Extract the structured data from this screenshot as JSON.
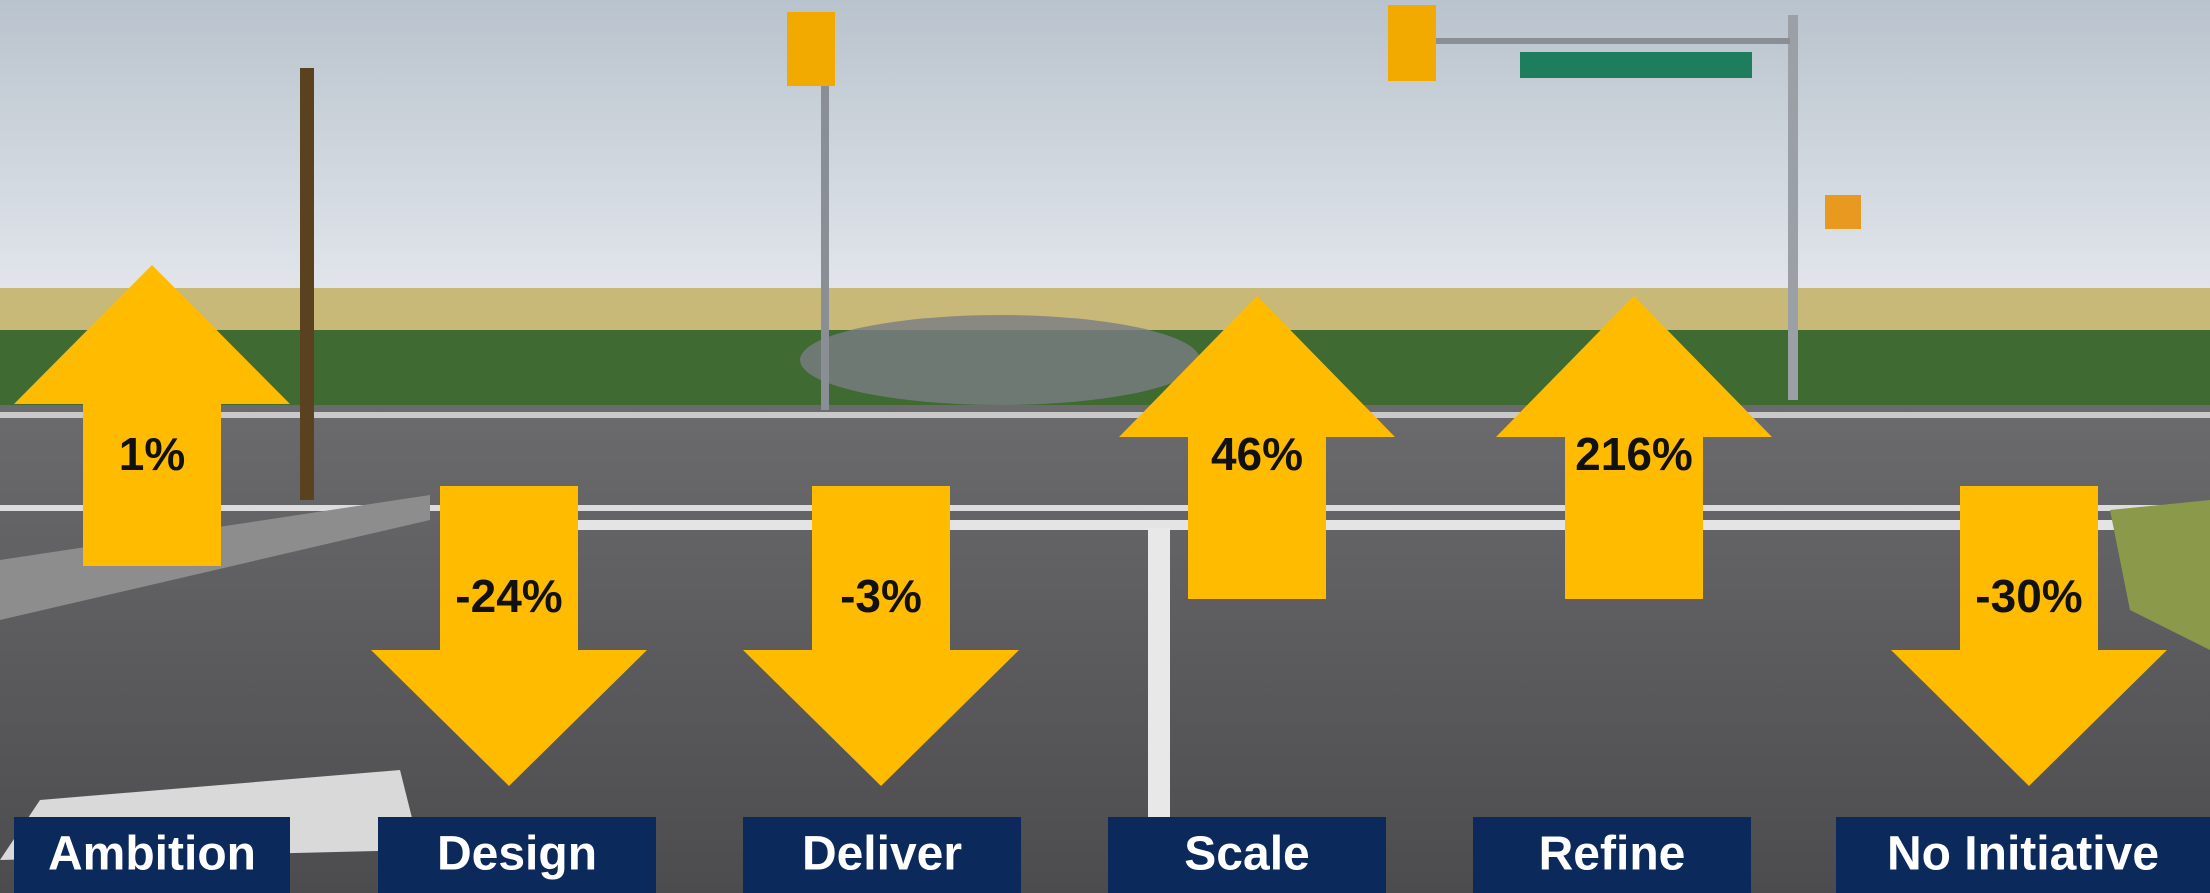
{
  "items": [
    {
      "label": "Ambition",
      "change": "1%"
    },
    {
      "label": "Design",
      "change": "-24%"
    },
    {
      "label": "Deliver",
      "change": "-3%"
    },
    {
      "label": "Scale",
      "change": "46%"
    },
    {
      "label": "Refine",
      "change": "216%"
    },
    {
      "label": "No Initiative",
      "change": "-30%"
    }
  ]
}
